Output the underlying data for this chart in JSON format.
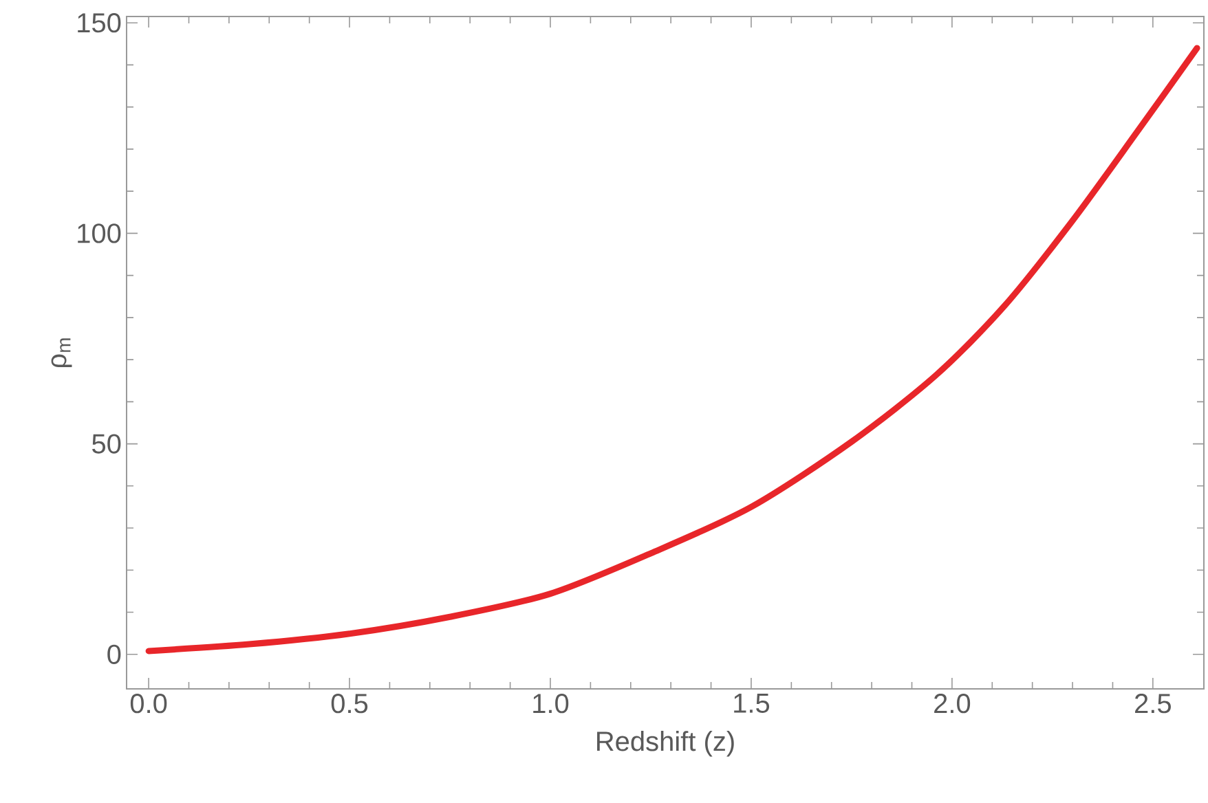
{
  "chart_data": {
    "type": "line",
    "xlabel": "Redshift (z)",
    "ylabel": "ρ$_{m}$",
    "x": [
      0,
      0.25,
      0.5,
      0.75,
      1.0,
      1.25,
      1.5,
      1.75,
      1.96,
      2.13,
      2.3,
      2.46,
      2.61
    ],
    "series": [
      {
        "color": "#e8262a",
        "values": [
          0.8,
          2.4,
          4.9,
          8.9,
          14.4,
          24,
          35,
          50.5,
          66.3,
          82.7,
          103,
          124,
          144
        ]
      }
    ],
    "xlim": [
      -0.055,
      2.627
    ],
    "ylim": [
      -8.2,
      151.5
    ],
    "xticks": [
      {
        "value": 0,
        "label": "0.0"
      },
      {
        "value": 0.5,
        "label": "0.5"
      },
      {
        "value": 1,
        "label": "1.0"
      },
      {
        "value": 1.5,
        "label": "1.5"
      },
      {
        "value": 2,
        "label": "2.0"
      },
      {
        "value": 2.5,
        "label": "2.5"
      }
    ],
    "yticks": [
      0,
      50,
      100,
      150
    ],
    "grid": false,
    "marker": "none",
    "line_style": "solid"
  }
}
